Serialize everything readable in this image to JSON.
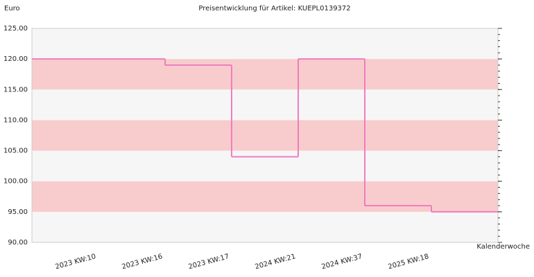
{
  "chart_data": {
    "type": "step",
    "title": "Preisentwicklung für Artikel: KUEPL0139372",
    "y_label": "Euro",
    "x_label": "Kalenderwoche",
    "categories": [
      "2023 KW:10",
      "2023 KW:16",
      "2023 KW:17",
      "2024 KW:21",
      "2024 KW:37",
      "2025 KW:18"
    ],
    "values": [
      120,
      119,
      104,
      120,
      96,
      95
    ],
    "color": "#f07cc0",
    "ylim": [
      90,
      125
    ],
    "yticks": [
      {
        "value": 90,
        "label": "90.00"
      },
      {
        "value": 95,
        "label": "95.00"
      },
      {
        "value": 100,
        "label": "100.00"
      },
      {
        "value": 105,
        "label": "105.00"
      },
      {
        "value": 110,
        "label": "110.00"
      },
      {
        "value": 115,
        "label": "115.00"
      },
      {
        "value": 120,
        "label": "120.00"
      },
      {
        "value": 125,
        "label": "125.00"
      }
    ],
    "band_colors": [
      "#f6f6f6",
      "#f8cccc"
    ]
  }
}
